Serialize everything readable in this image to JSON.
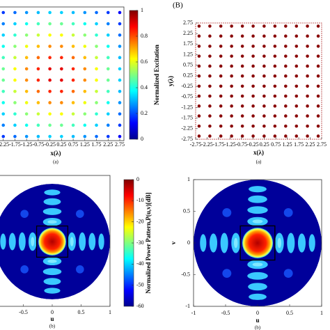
{
  "chart_data": [
    {
      "type": "scatter",
      "colormap": "jet",
      "x": [
        -2.75,
        -2.25,
        -1.75,
        -1.25,
        -0.75,
        -0.25,
        0.25,
        0.75,
        1.25,
        1.75,
        2.25,
        2.75
      ],
      "y": [
        2.75,
        2.25,
        1.75,
        1.25,
        0.75,
        0.25,
        -0.25,
        -0.75,
        -1.25,
        -1.75,
        -2.25,
        -2.75
      ],
      "values": [
        [
          0.12,
          0.18,
          0.23,
          0.27,
          0.31,
          0.33,
          0.33,
          0.31,
          0.27,
          0.23,
          0.18,
          0.12
        ],
        [
          0.18,
          0.25,
          0.33,
          0.39,
          0.44,
          0.48,
          0.48,
          0.44,
          0.39,
          0.33,
          0.25,
          0.18
        ],
        [
          0.23,
          0.33,
          0.42,
          0.51,
          0.57,
          0.62,
          0.62,
          0.57,
          0.51,
          0.42,
          0.33,
          0.23
        ],
        [
          0.27,
          0.39,
          0.51,
          0.61,
          0.69,
          0.74,
          0.74,
          0.69,
          0.61,
          0.51,
          0.39,
          0.27
        ],
        [
          0.31,
          0.44,
          0.57,
          0.69,
          0.77,
          0.84,
          0.84,
          0.77,
          0.69,
          0.57,
          0.44,
          0.31
        ],
        [
          0.33,
          0.48,
          0.62,
          0.74,
          0.84,
          0.9,
          0.9,
          0.84,
          0.74,
          0.62,
          0.48,
          0.33
        ],
        [
          0.33,
          0.48,
          0.62,
          0.74,
          0.84,
          0.9,
          0.9,
          0.84,
          0.74,
          0.62,
          0.48,
          0.33
        ],
        [
          0.31,
          0.44,
          0.57,
          0.69,
          0.77,
          0.84,
          0.84,
          0.77,
          0.69,
          0.57,
          0.44,
          0.31
        ],
        [
          0.27,
          0.39,
          0.51,
          0.61,
          0.69,
          0.74,
          0.74,
          0.69,
          0.61,
          0.51,
          0.39,
          0.27
        ],
        [
          0.23,
          0.33,
          0.42,
          0.51,
          0.57,
          0.62,
          0.62,
          0.57,
          0.51,
          0.42,
          0.33,
          0.23
        ],
        [
          0.18,
          0.25,
          0.33,
          0.39,
          0.44,
          0.48,
          0.48,
          0.44,
          0.39,
          0.33,
          0.25,
          0.18
        ],
        [
          0.12,
          0.18,
          0.23,
          0.27,
          0.31,
          0.33,
          0.33,
          0.31,
          0.27,
          0.23,
          0.18,
          0.12
        ]
      ],
      "xlim": [
        -2.75,
        2.75
      ],
      "ylim": [
        -2.75,
        2.75
      ],
      "xticks": [
        -2.25,
        -1.75,
        -1.25,
        -0.75,
        -0.25,
        0.25,
        0.75,
        1.25,
        1.75,
        2.25,
        2.75
      ],
      "xlabel": "x(λ)",
      "caption": "(a)",
      "colorbar": {
        "label": "Normalized Excitation",
        "lim": [
          0,
          1
        ],
        "ticks": [
          0,
          0.2,
          0.4,
          0.6,
          0.8,
          1
        ]
      }
    },
    {
      "type": "scatter",
      "panel_label": "(B)",
      "color": "#8b0a0a",
      "x": [
        -2.6,
        -2.13,
        -1.65,
        -1.18,
        -0.71,
        -0.24,
        0.24,
        0.71,
        1.18,
        1.65,
        2.13,
        2.6
      ],
      "y": [
        2.6,
        2.13,
        1.65,
        1.18,
        0.71,
        0.24,
        -0.24,
        -0.71,
        -1.18,
        -1.65,
        -2.13,
        -2.6
      ],
      "xlim": [
        -2.75,
        2.75
      ],
      "ylim": [
        -2.75,
        2.75
      ],
      "xticks": [
        -2.75,
        -2.25,
        -1.75,
        -1.25,
        -0.75,
        -0.25,
        0.25,
        0.75,
        1.25,
        1.75,
        2.25,
        2.75
      ],
      "yticks": [
        2.75,
        2.25,
        1.75,
        1.25,
        0.75,
        0.25,
        -0.25,
        -0.75,
        -1.25,
        -1.75,
        -2.25,
        -2.75
      ],
      "xlabel": "x(λ)",
      "ylabel": "y(λ)",
      "caption": "(a)"
    },
    {
      "type": "heatmap",
      "xlim": [
        -1,
        1
      ],
      "ylim": [
        -1,
        1
      ],
      "xticks": [
        -0.5,
        0,
        0.5,
        1
      ],
      "xlabel": "u",
      "caption": "(b)",
      "colorbar": {
        "label": "Normalized Power Pattern,P(u,v)[dB]",
        "lim": [
          -60,
          0
        ],
        "ticks": [
          0,
          -10,
          -20,
          -30,
          -40,
          -50,
          -60
        ]
      }
    },
    {
      "type": "heatmap",
      "xlim": [
        -1,
        1
      ],
      "ylim": [
        -1,
        1
      ],
      "xticks": [
        -1,
        -0.5,
        0,
        0.5,
        1
      ],
      "yticks": [
        -1,
        -0.5,
        0,
        0.5,
        1
      ],
      "xlabel": "u",
      "ylabel": "v",
      "caption": "(b)"
    }
  ]
}
